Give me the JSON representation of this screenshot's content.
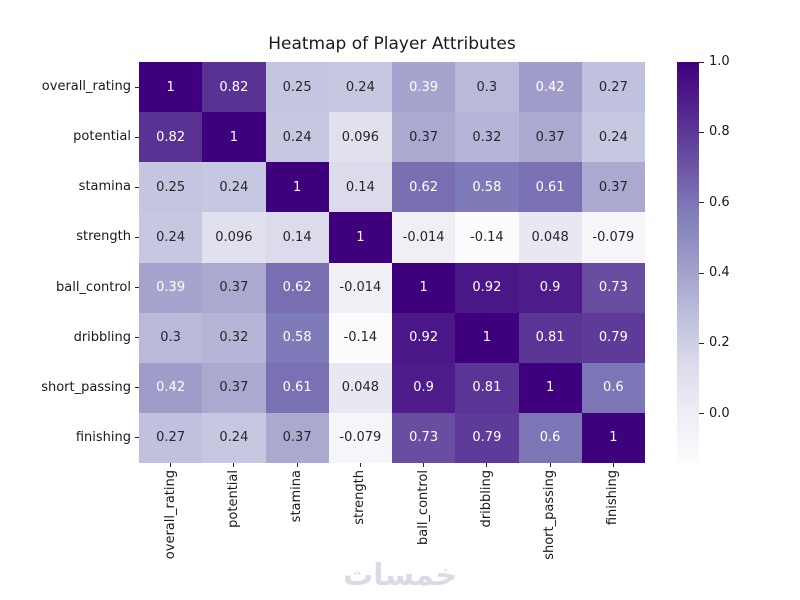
{
  "title": "Heatmap of Player Attributes",
  "watermark": {
    "text": "خمسات",
    "color": "#dbdbe8"
  },
  "colors": {
    "background": "#ffffff",
    "label_text": "#1a1a1a",
    "tick_mark": "#262626",
    "annotation_dark": "#262626",
    "annotation_light": "#ffffff"
  },
  "chart_data": {
    "type": "heatmap",
    "title": "Heatmap of Player Attributes",
    "categories": [
      "overall_rating",
      "potential",
      "stamina",
      "strength",
      "ball_control",
      "dribbling",
      "short_passing",
      "finishing"
    ],
    "matrix": [
      [
        1,
        0.82,
        0.25,
        0.24,
        0.39,
        0.3,
        0.42,
        0.27
      ],
      [
        0.82,
        1,
        0.24,
        0.096,
        0.37,
        0.32,
        0.37,
        0.24
      ],
      [
        0.25,
        0.24,
        1,
        0.14,
        0.62,
        0.58,
        0.61,
        0.37
      ],
      [
        0.24,
        0.096,
        0.14,
        1,
        -0.014,
        -0.14,
        0.048,
        -0.079
      ],
      [
        0.39,
        0.37,
        0.62,
        -0.014,
        1,
        0.92,
        0.9,
        0.73
      ],
      [
        0.3,
        0.32,
        0.58,
        -0.14,
        0.92,
        1,
        0.81,
        0.79
      ],
      [
        0.42,
        0.37,
        0.61,
        0.048,
        0.9,
        0.81,
        1,
        0.6
      ],
      [
        0.27,
        0.24,
        0.37,
        -0.079,
        0.73,
        0.79,
        0.6,
        1
      ]
    ],
    "cell_labels": [
      [
        "1",
        "0.82",
        "0.25",
        "0.24",
        "0.39",
        "0.3",
        "0.42",
        "0.27"
      ],
      [
        "0.82",
        "1",
        "0.24",
        "0.096",
        "0.37",
        "0.32",
        "0.37",
        "0.24"
      ],
      [
        "0.25",
        "0.24",
        "1",
        "0.14",
        "0.62",
        "0.58",
        "0.61",
        "0.37"
      ],
      [
        "0.24",
        "0.096",
        "0.14",
        "1",
        "-0.014",
        "-0.14",
        "0.048",
        "-0.079"
      ],
      [
        "0.39",
        "0.37",
        "0.62",
        "-0.014",
        "1",
        "0.92",
        "0.9",
        "0.73"
      ],
      [
        "0.3",
        "0.32",
        "0.58",
        "-0.14",
        "0.92",
        "1",
        "0.81",
        "0.79"
      ],
      [
        "0.42",
        "0.37",
        "0.61",
        "0.048",
        "0.9",
        "0.81",
        "1",
        "0.6"
      ],
      [
        "0.27",
        "0.24",
        "0.37",
        "-0.079",
        "0.73",
        "0.79",
        "0.6",
        "1"
      ]
    ],
    "vmin": -0.14,
    "vmax": 1.0,
    "colormap": {
      "name": "Purples",
      "stops": [
        "#fcfbfd",
        "#efedf5",
        "#dadaeb",
        "#bcbddc",
        "#9e9ac8",
        "#807dba",
        "#6a51a3",
        "#54278f",
        "#3f007d"
      ]
    },
    "luminance_threshold": 0.408,
    "colorbar": {
      "tick_labels": [
        "1.0",
        "0.8",
        "0.6",
        "0.4",
        "0.2",
        "0.0"
      ],
      "tick_values": [
        1.0,
        0.8,
        0.6,
        0.4,
        0.2,
        0.0
      ]
    },
    "legend_position": "right",
    "grid": false
  }
}
